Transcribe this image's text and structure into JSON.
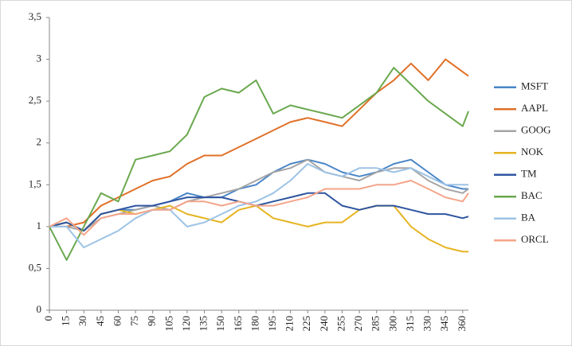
{
  "chart_data": {
    "type": "line",
    "x": [
      0,
      15,
      30,
      45,
      60,
      75,
      90,
      105,
      120,
      135,
      150,
      165,
      180,
      195,
      210,
      225,
      240,
      255,
      270,
      285,
      300,
      315,
      330,
      345,
      360,
      365
    ],
    "xlim": [
      0,
      365
    ],
    "xticks": [
      0,
      15,
      30,
      45,
      60,
      75,
      90,
      105,
      120,
      135,
      150,
      165,
      180,
      195,
      210,
      225,
      240,
      255,
      270,
      285,
      300,
      315,
      330,
      345,
      360
    ],
    "ylim": [
      0,
      3.5
    ],
    "yticks": [
      0,
      {
        "value": 0.5,
        "label": "0,5"
      },
      1,
      {
        "value": 1.5,
        "label": "1,5"
      },
      2,
      {
        "value": 2.5,
        "label": "2,5"
      },
      3,
      {
        "value": 3.5,
        "label": "3,5"
      }
    ],
    "legend": "right",
    "series": [
      {
        "name": "MSFT",
        "color": "#4a86c8",
        "values": [
          1,
          1.05,
          0.95,
          1.15,
          1.2,
          1.2,
          1.25,
          1.3,
          1.4,
          1.35,
          1.35,
          1.45,
          1.5,
          1.65,
          1.75,
          1.8,
          1.75,
          1.65,
          1.6,
          1.65,
          1.75,
          1.8,
          1.65,
          1.5,
          1.45,
          1.45
        ]
      },
      {
        "name": "AAPL",
        "color": "#e07028",
        "values": [
          1,
          1.0,
          1.05,
          1.25,
          1.35,
          1.45,
          1.55,
          1.6,
          1.75,
          1.85,
          1.85,
          1.95,
          2.05,
          2.15,
          2.25,
          2.3,
          2.25,
          2.2,
          2.4,
          2.6,
          2.75,
          2.95,
          2.75,
          3.0,
          2.85,
          2.8
        ]
      },
      {
        "name": "GOOG",
        "color": "#a5a5a5",
        "values": [
          1,
          1.0,
          0.95,
          1.1,
          1.15,
          1.2,
          1.25,
          1.2,
          1.3,
          1.35,
          1.4,
          1.45,
          1.55,
          1.65,
          1.7,
          1.8,
          1.65,
          1.6,
          1.55,
          1.65,
          1.7,
          1.7,
          1.55,
          1.45,
          1.4,
          1.45
        ]
      },
      {
        "name": "NOK",
        "color": "#e6b422",
        "values": [
          1,
          1.05,
          0.95,
          1.15,
          1.2,
          1.15,
          1.2,
          1.25,
          1.15,
          1.1,
          1.05,
          1.2,
          1.25,
          1.1,
          1.05,
          1.0,
          1.05,
          1.05,
          1.2,
          1.25,
          1.25,
          1.0,
          0.85,
          0.75,
          0.7,
          0.7
        ]
      },
      {
        "name": "TM",
        "color": "#2f55a0",
        "values": [
          1,
          1.05,
          0.95,
          1.15,
          1.2,
          1.25,
          1.25,
          1.3,
          1.35,
          1.35,
          1.35,
          1.3,
          1.25,
          1.3,
          1.35,
          1.4,
          1.4,
          1.25,
          1.2,
          1.25,
          1.25,
          1.2,
          1.15,
          1.15,
          1.1,
          1.12
        ]
      },
      {
        "name": "BAC",
        "color": "#6aa84f",
        "values": [
          1,
          0.6,
          1.0,
          1.4,
          1.3,
          1.8,
          1.85,
          1.9,
          2.1,
          2.55,
          2.65,
          2.6,
          2.75,
          2.35,
          2.45,
          2.4,
          2.35,
          2.3,
          2.45,
          2.6,
          2.9,
          2.7,
          2.5,
          2.35,
          2.2,
          2.38
        ]
      },
      {
        "name": "BA",
        "color": "#9dc3e6",
        "values": [
          1,
          1.0,
          0.75,
          0.85,
          0.95,
          1.1,
          1.2,
          1.2,
          1.0,
          1.05,
          1.15,
          1.25,
          1.3,
          1.4,
          1.55,
          1.75,
          1.65,
          1.6,
          1.7,
          1.7,
          1.65,
          1.7,
          1.6,
          1.5,
          1.5,
          1.5
        ]
      },
      {
        "name": "ORCL",
        "color": "#f4a58a",
        "values": [
          1,
          1.1,
          0.9,
          1.1,
          1.15,
          1.15,
          1.2,
          1.2,
          1.3,
          1.3,
          1.25,
          1.3,
          1.25,
          1.25,
          1.3,
          1.35,
          1.45,
          1.45,
          1.45,
          1.5,
          1.5,
          1.55,
          1.45,
          1.35,
          1.3,
          1.4
        ]
      }
    ]
  }
}
